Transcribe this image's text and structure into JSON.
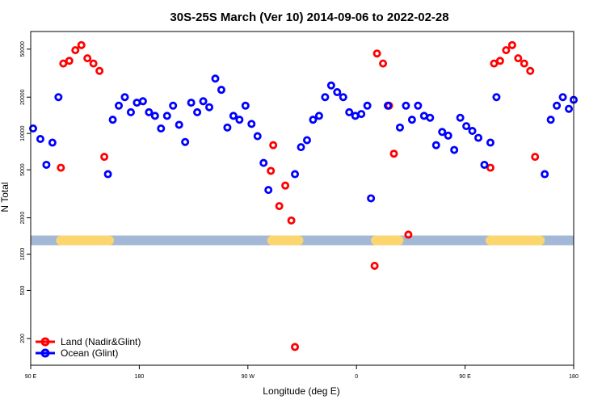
{
  "chart_data": {
    "type": "scatter",
    "title": "30S-25S March (Ver 10)   2014-09-06 to 2022-02-28",
    "xlabel": "Longitude (deg E)",
    "ylabel": "N Total",
    "xlim": [
      90,
      540
    ],
    "ylim_log": [
      120,
      70000
    ],
    "x_scale": "linear",
    "y_scale": "log10",
    "x_ticks": [
      {
        "value": 90,
        "label": "90 E"
      },
      {
        "value": 180,
        "label": "180"
      },
      {
        "value": 270,
        "label": "90 W"
      },
      {
        "value": 360,
        "label": "0"
      },
      {
        "value": 450,
        "label": "90 E"
      },
      {
        "value": 540,
        "label": "180"
      }
    ],
    "y_ticks": [
      {
        "value": 200,
        "label": "200"
      },
      {
        "value": 500,
        "label": "500"
      },
      {
        "value": 1000,
        "label": "1000"
      },
      {
        "value": 2000,
        "label": "2000"
      },
      {
        "value": 5000,
        "label": "5000"
      },
      {
        "value": 10000,
        "label": "10000"
      },
      {
        "value": 20000,
        "label": "20000"
      },
      {
        "value": 50000,
        "label": "50000"
      }
    ],
    "band": {
      "y_value": 1300,
      "ocean_color": "#a3b8d6",
      "land_color": "#fbd56d",
      "land_segments": [
        [
          115,
          155
        ],
        [
          290,
          312
        ],
        [
          376,
          395
        ],
        [
          471,
          512
        ]
      ]
    },
    "series": [
      {
        "name": "Land (Nadir&Glint)",
        "color": "#ff0000",
        "points": [
          [
            115,
            5200
          ],
          [
            117,
            38000
          ],
          [
            122,
            40000
          ],
          [
            127,
            49000
          ],
          [
            132,
            54000
          ],
          [
            137,
            42000
          ],
          [
            142,
            38000
          ],
          [
            147,
            33000
          ],
          [
            151,
            6400
          ],
          [
            291,
            8000
          ],
          [
            289,
            4900
          ],
          [
            296,
            2500
          ],
          [
            301,
            3700
          ],
          [
            306,
            1900
          ],
          [
            309,
            170
          ],
          [
            375,
            800
          ],
          [
            377,
            46000
          ],
          [
            382,
            38000
          ],
          [
            387,
            17000
          ],
          [
            391,
            6800
          ],
          [
            403,
            1450
          ],
          [
            471,
            5200
          ],
          [
            474,
            38000
          ],
          [
            479,
            40000
          ],
          [
            484,
            49000
          ],
          [
            489,
            54000
          ],
          [
            494,
            42000
          ],
          [
            499,
            38000
          ],
          [
            504,
            33000
          ],
          [
            508,
            6400
          ]
        ]
      },
      {
        "name": "Ocean (Glint)",
        "color": "#0000ff",
        "points": [
          [
            92,
            11000
          ],
          [
            98,
            9000
          ],
          [
            103,
            5500
          ],
          [
            108,
            8400
          ],
          [
            113,
            20000
          ],
          [
            154,
            4600
          ],
          [
            158,
            13000
          ],
          [
            163,
            17000
          ],
          [
            168,
            20000
          ],
          [
            173,
            15000
          ],
          [
            178,
            18000
          ],
          [
            183,
            18500
          ],
          [
            188,
            15000
          ],
          [
            193,
            14000
          ],
          [
            198,
            11000
          ],
          [
            203,
            14000
          ],
          [
            208,
            17000
          ],
          [
            213,
            11800
          ],
          [
            218,
            8500
          ],
          [
            223,
            18000
          ],
          [
            228,
            15000
          ],
          [
            233,
            18500
          ],
          [
            238,
            16500
          ],
          [
            243,
            28500
          ],
          [
            248,
            23000
          ],
          [
            253,
            11200
          ],
          [
            258,
            14000
          ],
          [
            263,
            13000
          ],
          [
            268,
            17000
          ],
          [
            273,
            12000
          ],
          [
            278,
            9500
          ],
          [
            283,
            5700
          ],
          [
            287,
            3400
          ],
          [
            309,
            4600
          ],
          [
            314,
            7700
          ],
          [
            319,
            8800
          ],
          [
            324,
            13000
          ],
          [
            329,
            14000
          ],
          [
            334,
            20000
          ],
          [
            339,
            25000
          ],
          [
            344,
            22000
          ],
          [
            349,
            20000
          ],
          [
            354,
            15000
          ],
          [
            359,
            14000
          ],
          [
            364,
            14500
          ],
          [
            369,
            17000
          ],
          [
            372,
            2900
          ],
          [
            386,
            17000
          ],
          [
            396,
            11200
          ],
          [
            401,
            17000
          ],
          [
            406,
            13000
          ],
          [
            411,
            17000
          ],
          [
            416,
            14000
          ],
          [
            421,
            13500
          ],
          [
            426,
            8000
          ],
          [
            431,
            10300
          ],
          [
            436,
            9600
          ],
          [
            441,
            7300
          ],
          [
            446,
            13500
          ],
          [
            451,
            11500
          ],
          [
            456,
            10500
          ],
          [
            461,
            9200
          ],
          [
            466,
            5500
          ],
          [
            471,
            8400
          ],
          [
            476,
            20000
          ],
          [
            516,
            4600
          ],
          [
            521,
            13000
          ],
          [
            526,
            17000
          ],
          [
            531,
            20000
          ],
          [
            536,
            16000
          ],
          [
            540,
            19000
          ]
        ]
      }
    ],
    "legend": {
      "position": "bottom-left",
      "entries": [
        "Land (Nadir&Glint)",
        "Ocean (Glint)"
      ]
    }
  }
}
